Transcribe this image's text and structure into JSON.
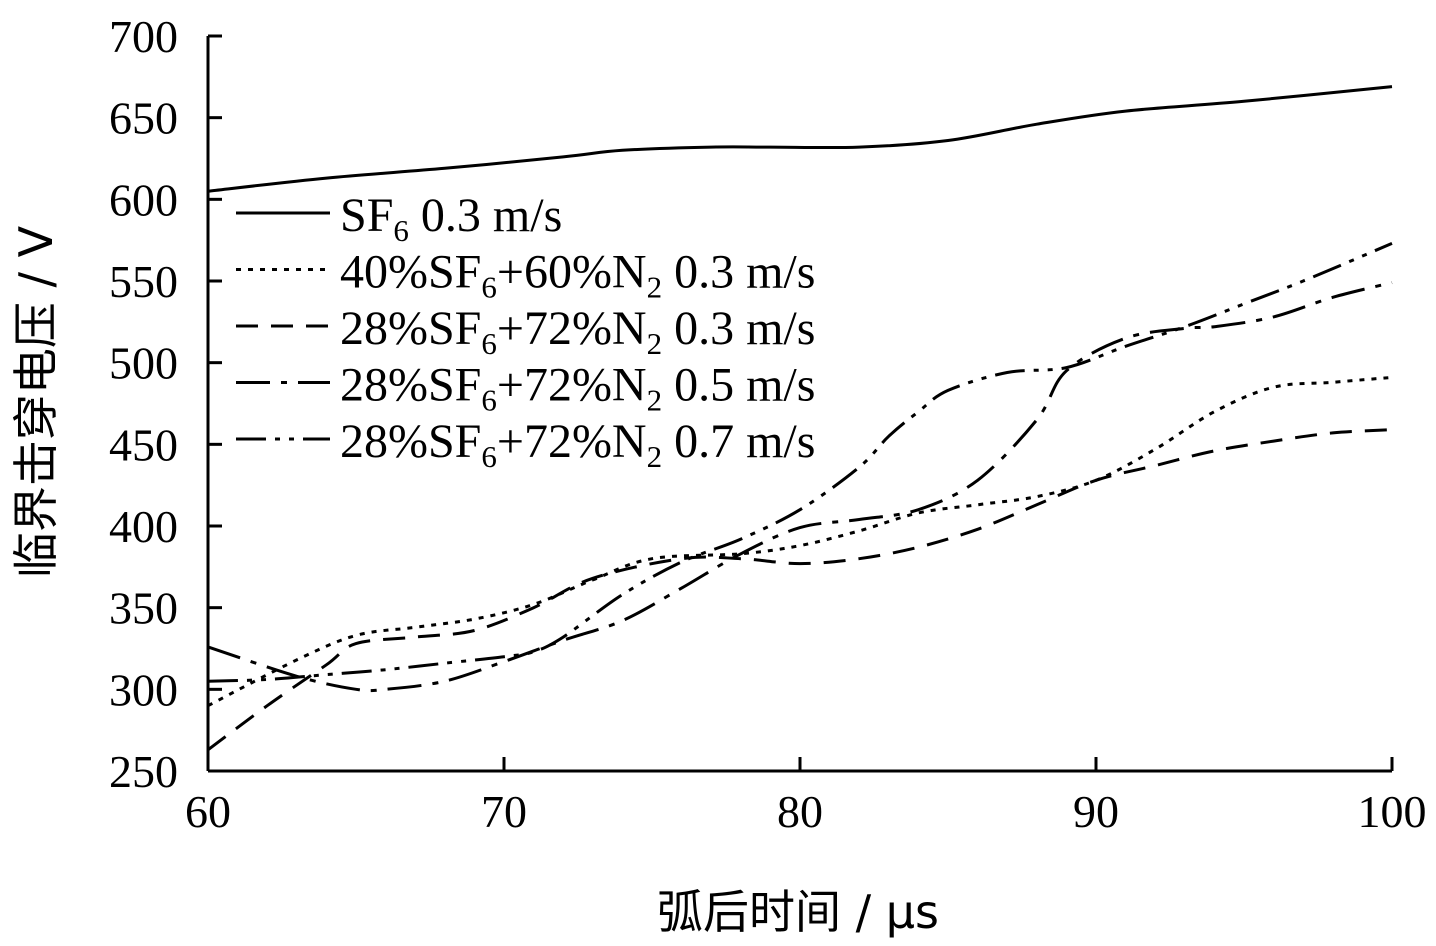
{
  "chart_data": {
    "type": "line",
    "title": "",
    "xlabel": "弧后时间 / μs",
    "ylabel": "临界击穿电压 / V",
    "xlim": [
      60,
      100
    ],
    "ylim": [
      250,
      700
    ],
    "xticks": [
      60,
      70,
      80,
      90,
      100
    ],
    "yticks": [
      250,
      300,
      350,
      400,
      450,
      500,
      550,
      600,
      650,
      700
    ],
    "grid": false,
    "legend_position": "upper-left",
    "series": [
      {
        "name": "SF6 0.3 m/s",
        "name_parts": [
          "SF",
          "6",
          " 0.3 m/s"
        ],
        "dash": "solid",
        "x": [
          60,
          64,
          68,
          72,
          74,
          77,
          79,
          82,
          85,
          88,
          91,
          95,
          100
        ],
        "y": [
          605,
          613,
          619,
          626,
          630,
          632,
          632,
          632,
          636,
          646,
          654,
          660,
          669
        ]
      },
      {
        "name": "40%SF6+60%N2 0.3 m/s",
        "name_parts": [
          "40%SF",
          "6",
          "+60%N",
          "2",
          " 0.3 m/s"
        ],
        "dash": "dotted",
        "x": [
          60,
          63,
          65,
          67,
          69,
          71,
          73,
          75,
          78,
          80,
          82,
          84,
          86,
          88,
          90,
          92,
          94,
          96,
          98,
          100
        ],
        "y": [
          290,
          318,
          333,
          338,
          343,
          352,
          367,
          380,
          383,
          388,
          397,
          408,
          413,
          418,
          428,
          447,
          470,
          485,
          488,
          491
        ]
      },
      {
        "name": "28%SF6+72%N2 0.3 m/s",
        "name_parts": [
          "28%SF",
          "6",
          "+72%N",
          "2",
          " 0.3 m/s"
        ],
        "dash": "dashed",
        "x": [
          60,
          62,
          64,
          65,
          67,
          69,
          71,
          73,
          76,
          78,
          80,
          82,
          84,
          86,
          88,
          90,
          92,
          94,
          96,
          98,
          100
        ],
        "y": [
          263,
          290,
          315,
          328,
          332,
          336,
          350,
          368,
          380,
          380,
          377,
          380,
          387,
          398,
          413,
          428,
          437,
          446,
          452,
          457,
          459
        ]
      },
      {
        "name": "28%SF6+72%N2 0.5 m/s",
        "name_parts": [
          "28%SF",
          "6",
          "+72%N",
          "2",
          " 0.5 m/s"
        ],
        "dash": "dashdot",
        "x": [
          60,
          63,
          65,
          66,
          68,
          70,
          72,
          74,
          76,
          78,
          80,
          82,
          84,
          86,
          88,
          89,
          91,
          93,
          94,
          96,
          98,
          100
        ],
        "y": [
          326,
          308,
          300,
          300,
          305,
          317,
          330,
          342,
          362,
          383,
          399,
          404,
          410,
          428,
          465,
          495,
          515,
          521,
          522,
          528,
          540,
          549
        ]
      },
      {
        "name": "28%SF6+72%N2 0.7 m/s",
        "name_parts": [
          "28%SF",
          "6",
          "+72%N",
          "2",
          " 0.7 m/s"
        ],
        "dash": "dashdotdot",
        "x": [
          60,
          62,
          64,
          66,
          68,
          70,
          71,
          72,
          74,
          76,
          78,
          80,
          82,
          83,
          84,
          85,
          87,
          89,
          91,
          93,
          95,
          97,
          100
        ],
        "y": [
          305,
          306,
          309,
          312,
          316,
          320,
          323,
          332,
          358,
          378,
          392,
          410,
          436,
          455,
          470,
          483,
          494,
          497,
          510,
          522,
          536,
          550,
          573
        ]
      }
    ]
  }
}
